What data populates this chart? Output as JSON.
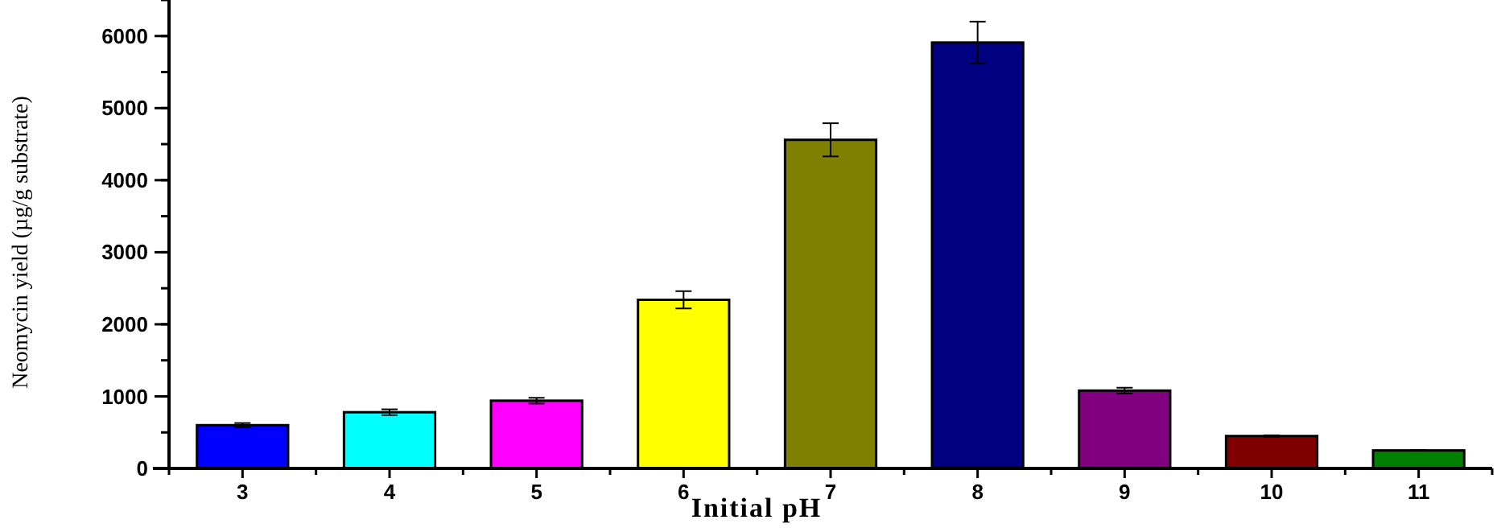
{
  "chart_data": {
    "type": "bar",
    "xlabel": "Initial pH",
    "ylabel": "Neomycin yield (µg/g substrate)",
    "categories": [
      "3",
      "4",
      "5",
      "6",
      "7",
      "8",
      "9",
      "10",
      "11"
    ],
    "values": [
      600,
      780,
      940,
      2340,
      4560,
      5910,
      1080,
      450,
      250
    ],
    "errors": [
      30,
      40,
      40,
      120,
      230,
      290,
      40,
      10,
      5
    ],
    "colors": [
      "#0000ff",
      "#00ffff",
      "#ff00ff",
      "#ffff00",
      "#808000",
      "#000080",
      "#800080",
      "#800000",
      "#008000"
    ],
    "ylim": [
      0,
      6500
    ],
    "yticks": [
      0,
      1000,
      2000,
      3000,
      4000,
      5000,
      6000
    ],
    "grid": false
  }
}
